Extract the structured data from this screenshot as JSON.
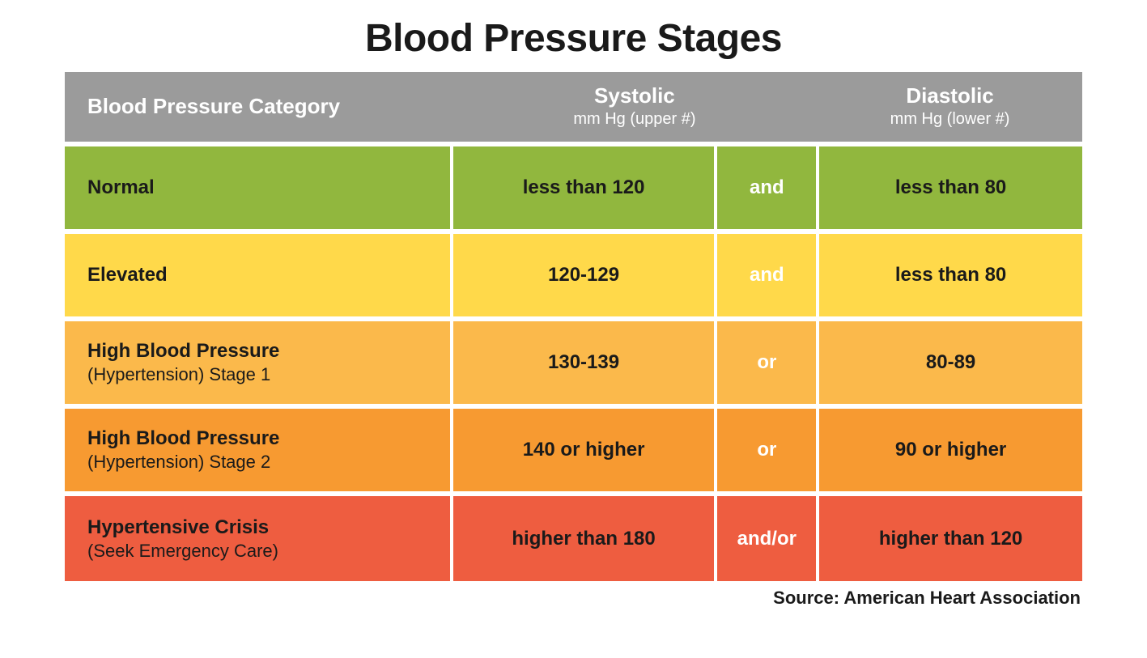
{
  "title": "Blood Pressure Stages",
  "source_label": "Source: American Heart Association",
  "header": {
    "bg": "#9b9b9b",
    "category": "Blood Pressure Category",
    "systolic": "Systolic",
    "systolic_sub": "mm Hg (upper #)",
    "diastolic": "Diastolic",
    "diastolic_sub": "mm Hg (lower #)"
  },
  "rows": [
    {
      "bg": "#91b73e",
      "category": "Normal",
      "category_sub": "",
      "systolic": "less than 120",
      "operator": "and",
      "diastolic": "less than 80"
    },
    {
      "bg": "#ffd94a",
      "category": "Elevated",
      "category_sub": "",
      "systolic": "120-129",
      "operator": "and",
      "diastolic": "less than 80"
    },
    {
      "bg": "#fbb94b",
      "category": "High Blood Pressure",
      "category_sub": "(Hypertension) Stage 1",
      "systolic": "130-139",
      "operator": "or",
      "diastolic": "80-89"
    },
    {
      "bg": "#f79a31",
      "category": "High Blood Pressure",
      "category_sub": "(Hypertension) Stage 2",
      "systolic": "140 or higher",
      "operator": "or",
      "diastolic": "90 or higher"
    },
    {
      "bg": "#ee5d40",
      "category": "Hypertensive Crisis",
      "category_sub": "(Seek Emergency Care)",
      "systolic": "higher than 180",
      "operator": "and/or",
      "diastolic": "higher than 120"
    }
  ]
}
